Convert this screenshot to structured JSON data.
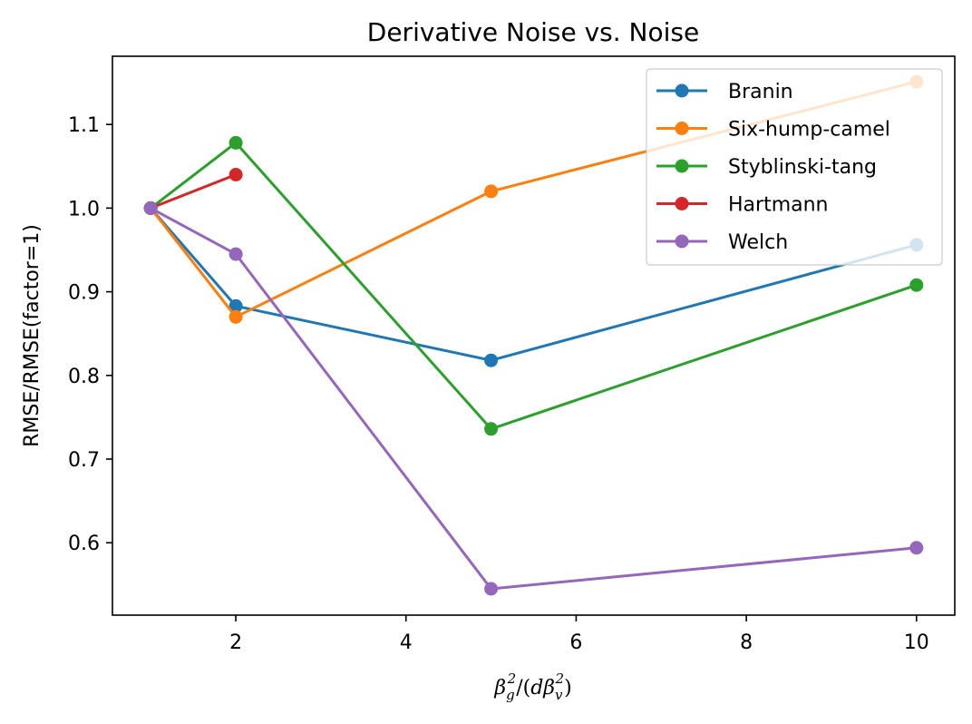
{
  "chart_data": {
    "type": "line",
    "title": "Derivative Noise vs. Noise",
    "xlabel": "β_g²/(dβ_v²)",
    "ylabel": "RMSE/RMSE(factor=1)",
    "xlim": [
      0.55,
      10.45
    ],
    "ylim": [
      0.5135,
      1.1815
    ],
    "xticks": [
      2,
      4,
      6,
      8,
      10
    ],
    "xtick_labels": [
      "2",
      "4",
      "6",
      "8",
      "10"
    ],
    "yticks": [
      0.6,
      0.7,
      0.8,
      0.9,
      1.0,
      1.1
    ],
    "ytick_labels": [
      "0.6",
      "0.7",
      "0.8",
      "0.9",
      "1.0",
      "1.1"
    ],
    "legend_position": "top-right",
    "grid": false,
    "series": [
      {
        "name": "Branin",
        "color": "#1f77b4",
        "x": [
          1,
          2,
          5,
          10
        ],
        "y": [
          1.0,
          0.883,
          0.818,
          0.956
        ]
      },
      {
        "name": "Six-hump-camel",
        "color": "#ff7f0e",
        "x": [
          1,
          2,
          5,
          10
        ],
        "y": [
          1.0,
          0.87,
          1.02,
          1.151
        ]
      },
      {
        "name": "Styblinski-tang",
        "color": "#2ca02c",
        "x": [
          1,
          2,
          5,
          10
        ],
        "y": [
          1.0,
          1.078,
          0.736,
          0.908
        ]
      },
      {
        "name": "Hartmann",
        "color": "#d62728",
        "x": [
          1,
          2
        ],
        "y": [
          1.0,
          1.04
        ]
      },
      {
        "name": "Welch",
        "color": "#9467bd",
        "x": [
          1,
          2,
          5,
          10
        ],
        "y": [
          1.0,
          0.945,
          0.545,
          0.594
        ]
      }
    ]
  }
}
